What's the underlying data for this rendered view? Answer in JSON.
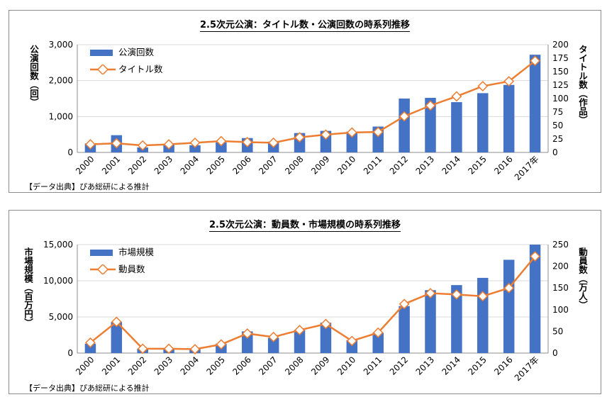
{
  "chart_data": [
    {
      "type": "bar+line",
      "title": "2.5次元公演：タイトル数・公演回数の時系列推移",
      "source": "【データ出典】ぴあ総研による推計",
      "categories": [
        "2000",
        "2001",
        "2002",
        "2003",
        "2004",
        "2005",
        "2006",
        "2007",
        "2008",
        "2009",
        "2010",
        "2011",
        "2012",
        "2013",
        "2014",
        "2015",
        "2016",
        "2017年"
      ],
      "ylabel": "公演回数（回）",
      "y2label": "タイトル数（作品）",
      "ylim": [
        0,
        3000
      ],
      "y2lim": [
        0,
        200
      ],
      "yticks": [
        "0",
        "1,000",
        "2,000",
        "3,000"
      ],
      "y2ticks": [
        "0",
        "25",
        "50",
        "75",
        "100",
        "125",
        "150",
        "175",
        "200"
      ],
      "series": [
        {
          "name": "公演回数",
          "kind": "bar",
          "axis": "left",
          "values": [
            250,
            480,
            140,
            240,
            200,
            280,
            400,
            300,
            540,
            600,
            580,
            720,
            1500,
            1520,
            1400,
            1650,
            1880,
            2720
          ]
        },
        {
          "name": "タイトル数",
          "kind": "line",
          "axis": "right",
          "values": [
            15,
            17,
            13,
            15,
            18,
            21,
            19,
            18,
            28,
            33,
            37,
            38,
            67,
            87,
            104,
            123,
            132,
            170
          ]
        }
      ],
      "colors": {
        "bar": "#4472c4",
        "line": "#ed7d31",
        "marker_fill": "#ffffff"
      },
      "legend": "top-left",
      "grid": "horizontal"
    },
    {
      "type": "bar+line",
      "title": "2.5次元公演：動員数・市場規模の時系列推移",
      "source": "【データ出典】ぴあ総研による推計",
      "categories": [
        "2000",
        "2001",
        "2002",
        "2003",
        "2004",
        "2005",
        "2006",
        "2007",
        "2008",
        "2009",
        "2010",
        "2011",
        "2012",
        "2013",
        "2014",
        "2015",
        "2016",
        "2017年"
      ],
      "ylabel": "市場規模（百万円）",
      "y2label": "動員数（万人）",
      "ylim": [
        0,
        15000
      ],
      "y2lim": [
        0,
        250
      ],
      "yticks": [
        "0",
        "5,000",
        "10,000",
        "15,000"
      ],
      "y2ticks": [
        "0",
        "50",
        "100",
        "150",
        "200",
        "250"
      ],
      "series": [
        {
          "name": "市場規模",
          "kind": "bar",
          "axis": "left",
          "values": [
            1300,
            4300,
            600,
            700,
            600,
            1300,
            3000,
            2100,
            3200,
            4200,
            1800,
            2800,
            6500,
            8700,
            9400,
            10400,
            12900,
            15000
          ]
        },
        {
          "name": "動員数",
          "kind": "line",
          "axis": "right",
          "values": [
            24,
            72,
            10,
            10,
            9,
            20,
            45,
            37,
            53,
            67,
            28,
            47,
            113,
            138,
            135,
            131,
            150,
            223
          ]
        }
      ],
      "colors": {
        "bar": "#4472c4",
        "line": "#ed7d31",
        "marker_fill": "#ffffff"
      },
      "legend": "top-left",
      "grid": "horizontal"
    }
  ]
}
